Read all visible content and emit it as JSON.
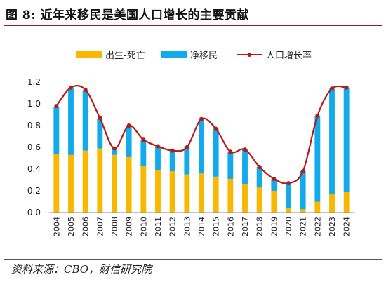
{
  "figure": {
    "title": "图 8:  近年来移民是美国人口增长的主要贡献",
    "source_label": "资料来源：",
    "source_value": "CBO，财信研究院"
  },
  "colors": {
    "natural_increase": "#f8b800",
    "net_migration": "#12aaea",
    "population_growth": "#b01c1c",
    "title_rule": "#9a1b1b"
  },
  "chart_data": {
    "type": "bar",
    "stacked": true,
    "categories": [
      "2004",
      "2005",
      "2006",
      "2007",
      "2008",
      "2009",
      "2010",
      "2011",
      "2012",
      "2013",
      "2014",
      "2015",
      "2016",
      "2017",
      "2018",
      "2019",
      "2020",
      "2021",
      "2022",
      "2023",
      "2024"
    ],
    "series": [
      {
        "name": "出生-死亡",
        "kind": "bar",
        "values": [
          0.54,
          0.53,
          0.57,
          0.59,
          0.53,
          0.51,
          0.43,
          0.39,
          0.38,
          0.35,
          0.36,
          0.33,
          0.31,
          0.26,
          0.23,
          0.2,
          0.04,
          0.03,
          0.1,
          0.17,
          0.19
        ]
      },
      {
        "name": "净移民",
        "kind": "bar",
        "values": [
          0.43,
          0.61,
          0.55,
          0.27,
          0.06,
          0.29,
          0.24,
          0.22,
          0.19,
          0.25,
          0.49,
          0.44,
          0.25,
          0.32,
          0.19,
          0.11,
          0.23,
          0.35,
          0.79,
          0.97,
          0.96
        ]
      },
      {
        "name": "人口增长率",
        "kind": "line",
        "values": [
          0.98,
          1.15,
          1.13,
          0.87,
          0.59,
          0.8,
          0.67,
          0.61,
          0.57,
          0.6,
          0.86,
          0.77,
          0.56,
          0.58,
          0.42,
          0.31,
          0.27,
          0.38,
          0.89,
          1.14,
          1.15
        ]
      }
    ],
    "yticks": [
      "0.0",
      "0.2",
      "0.4",
      "0.6",
      "0.8",
      "1.0",
      "1.2"
    ],
    "ylim": [
      0,
      1.2
    ],
    "grid": false,
    "legend_position": "top-center",
    "title": "",
    "xlabel": "",
    "ylabel": ""
  }
}
